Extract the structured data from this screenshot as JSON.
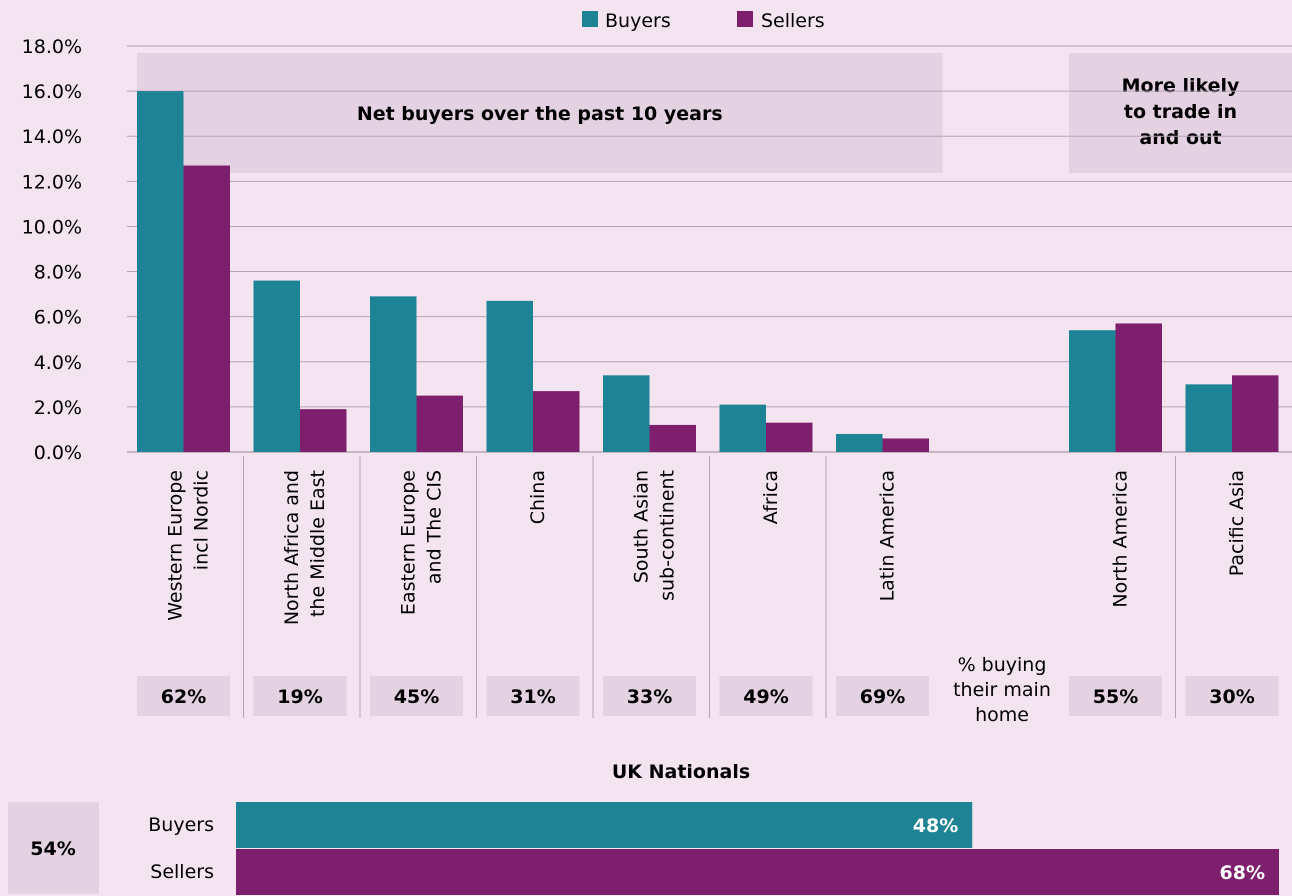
{
  "chart_data": [
    {
      "type": "bar",
      "legend": {
        "position": "top-center",
        "items": [
          "Buyers",
          "Sellers"
        ]
      },
      "ylim": [
        0,
        18
      ],
      "yticks": [
        "0.0%",
        "2.0%",
        "4.0%",
        "6.0%",
        "8.0%",
        "10.0%",
        "12.0%",
        "14.0%",
        "16.0%",
        "18.0%"
      ],
      "grid": true,
      "categories": [
        "Western Europe incl Nordic",
        "North Africa and the Middle East",
        "Eastern Europe and The CIS",
        "China",
        "South Asian sub-continent",
        "Africa",
        "Latin America",
        "",
        "North America",
        "Pacific Asia"
      ],
      "category_lines": [
        [
          "Western Europe",
          "incl Nordic"
        ],
        [
          "North Africa and",
          "the Middle East"
        ],
        [
          "Eastern Europe",
          "and The CIS"
        ],
        [
          "China"
        ],
        [
          "South Asian",
          "sub-continent"
        ],
        [
          "Africa"
        ],
        [
          "Latin America"
        ],
        [],
        [
          "North America"
        ],
        [
          "Pacific Asia"
        ]
      ],
      "series": [
        {
          "name": "Buyers",
          "color": "#1e8394",
          "values": [
            16.0,
            7.6,
            6.9,
            6.7,
            3.4,
            2.1,
            0.8,
            null,
            5.4,
            3.0
          ]
        },
        {
          "name": "Sellers",
          "color": "#7e1f6e",
          "values": [
            12.7,
            1.9,
            2.5,
            2.7,
            1.2,
            1.3,
            0.6,
            null,
            5.7,
            3.4
          ]
        }
      ],
      "annotations": [
        {
          "text": "Net buyers over the past 10 years",
          "categories": [
            0,
            6
          ]
        },
        {
          "text": "More likely to trade in and out",
          "lines": [
            "More likely",
            "to trade in",
            "and out"
          ],
          "categories": [
            8,
            9
          ]
        }
      ],
      "main_home": {
        "label_lines": [
          "% buying",
          "their main",
          "home"
        ],
        "values": [
          "62%",
          "19%",
          "45%",
          "31%",
          "33%",
          "49%",
          "69%",
          "",
          "55%",
          "30%"
        ]
      }
    },
    {
      "type": "bar",
      "orientation": "horizontal",
      "title": "UK Nationals",
      "categories": [
        "Buyers",
        "Sellers"
      ],
      "values": [
        48,
        68
      ],
      "value_labels": [
        "48%",
        "68%"
      ],
      "colors": [
        "#1e8394",
        "#7e1f6e"
      ],
      "xlim": [
        0,
        68
      ],
      "main_home_value": "54%"
    }
  ],
  "colors": {
    "background": "#f3e4f0",
    "box": "#e4d1e2",
    "grid": "#b9a3b7"
  }
}
